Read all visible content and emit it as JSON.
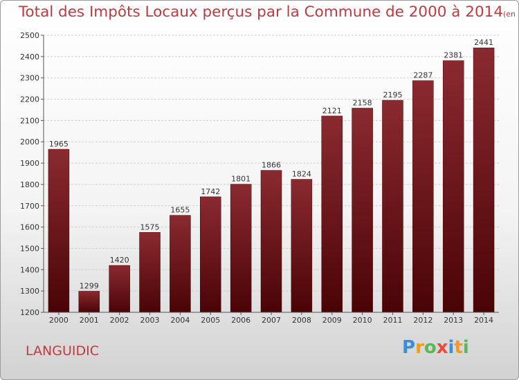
{
  "chart_data": {
    "type": "bar",
    "title": "Total des Impôts Locaux perçus par la Commune de 2000 à 2014",
    "subtitle": "(en milliers d'€)",
    "categories": [
      "2000",
      "2001",
      "2002",
      "2003",
      "2004",
      "2005",
      "2006",
      "2007",
      "2008",
      "2009",
      "2010",
      "2011",
      "2012",
      "2013",
      "2014"
    ],
    "values": [
      1965,
      1299,
      1420,
      1575,
      1655,
      1742,
      1801,
      1866,
      1824,
      2121,
      2158,
      2195,
      2287,
      2381,
      2441
    ],
    "ylim": [
      1200,
      2500
    ],
    "yticks": [
      1200,
      1300,
      1400,
      1500,
      1600,
      1700,
      1800,
      1900,
      2000,
      2100,
      2200,
      2300,
      2400,
      2500
    ],
    "grid": true,
    "colors": {
      "bar": "#7a1a1f",
      "bar_dark": "#4a0508",
      "title": "#c03a3f"
    }
  },
  "commune": "LANGUIDIC",
  "logo": {
    "letters": [
      "P",
      "r",
      "o",
      "x",
      "i",
      "t",
      "i"
    ],
    "colors": [
      "#3a8fd6",
      "#f39c12",
      "#5cb85c",
      "#e74c3c",
      "#3a8fd6",
      "#f39c12",
      "#5cb85c"
    ]
  }
}
